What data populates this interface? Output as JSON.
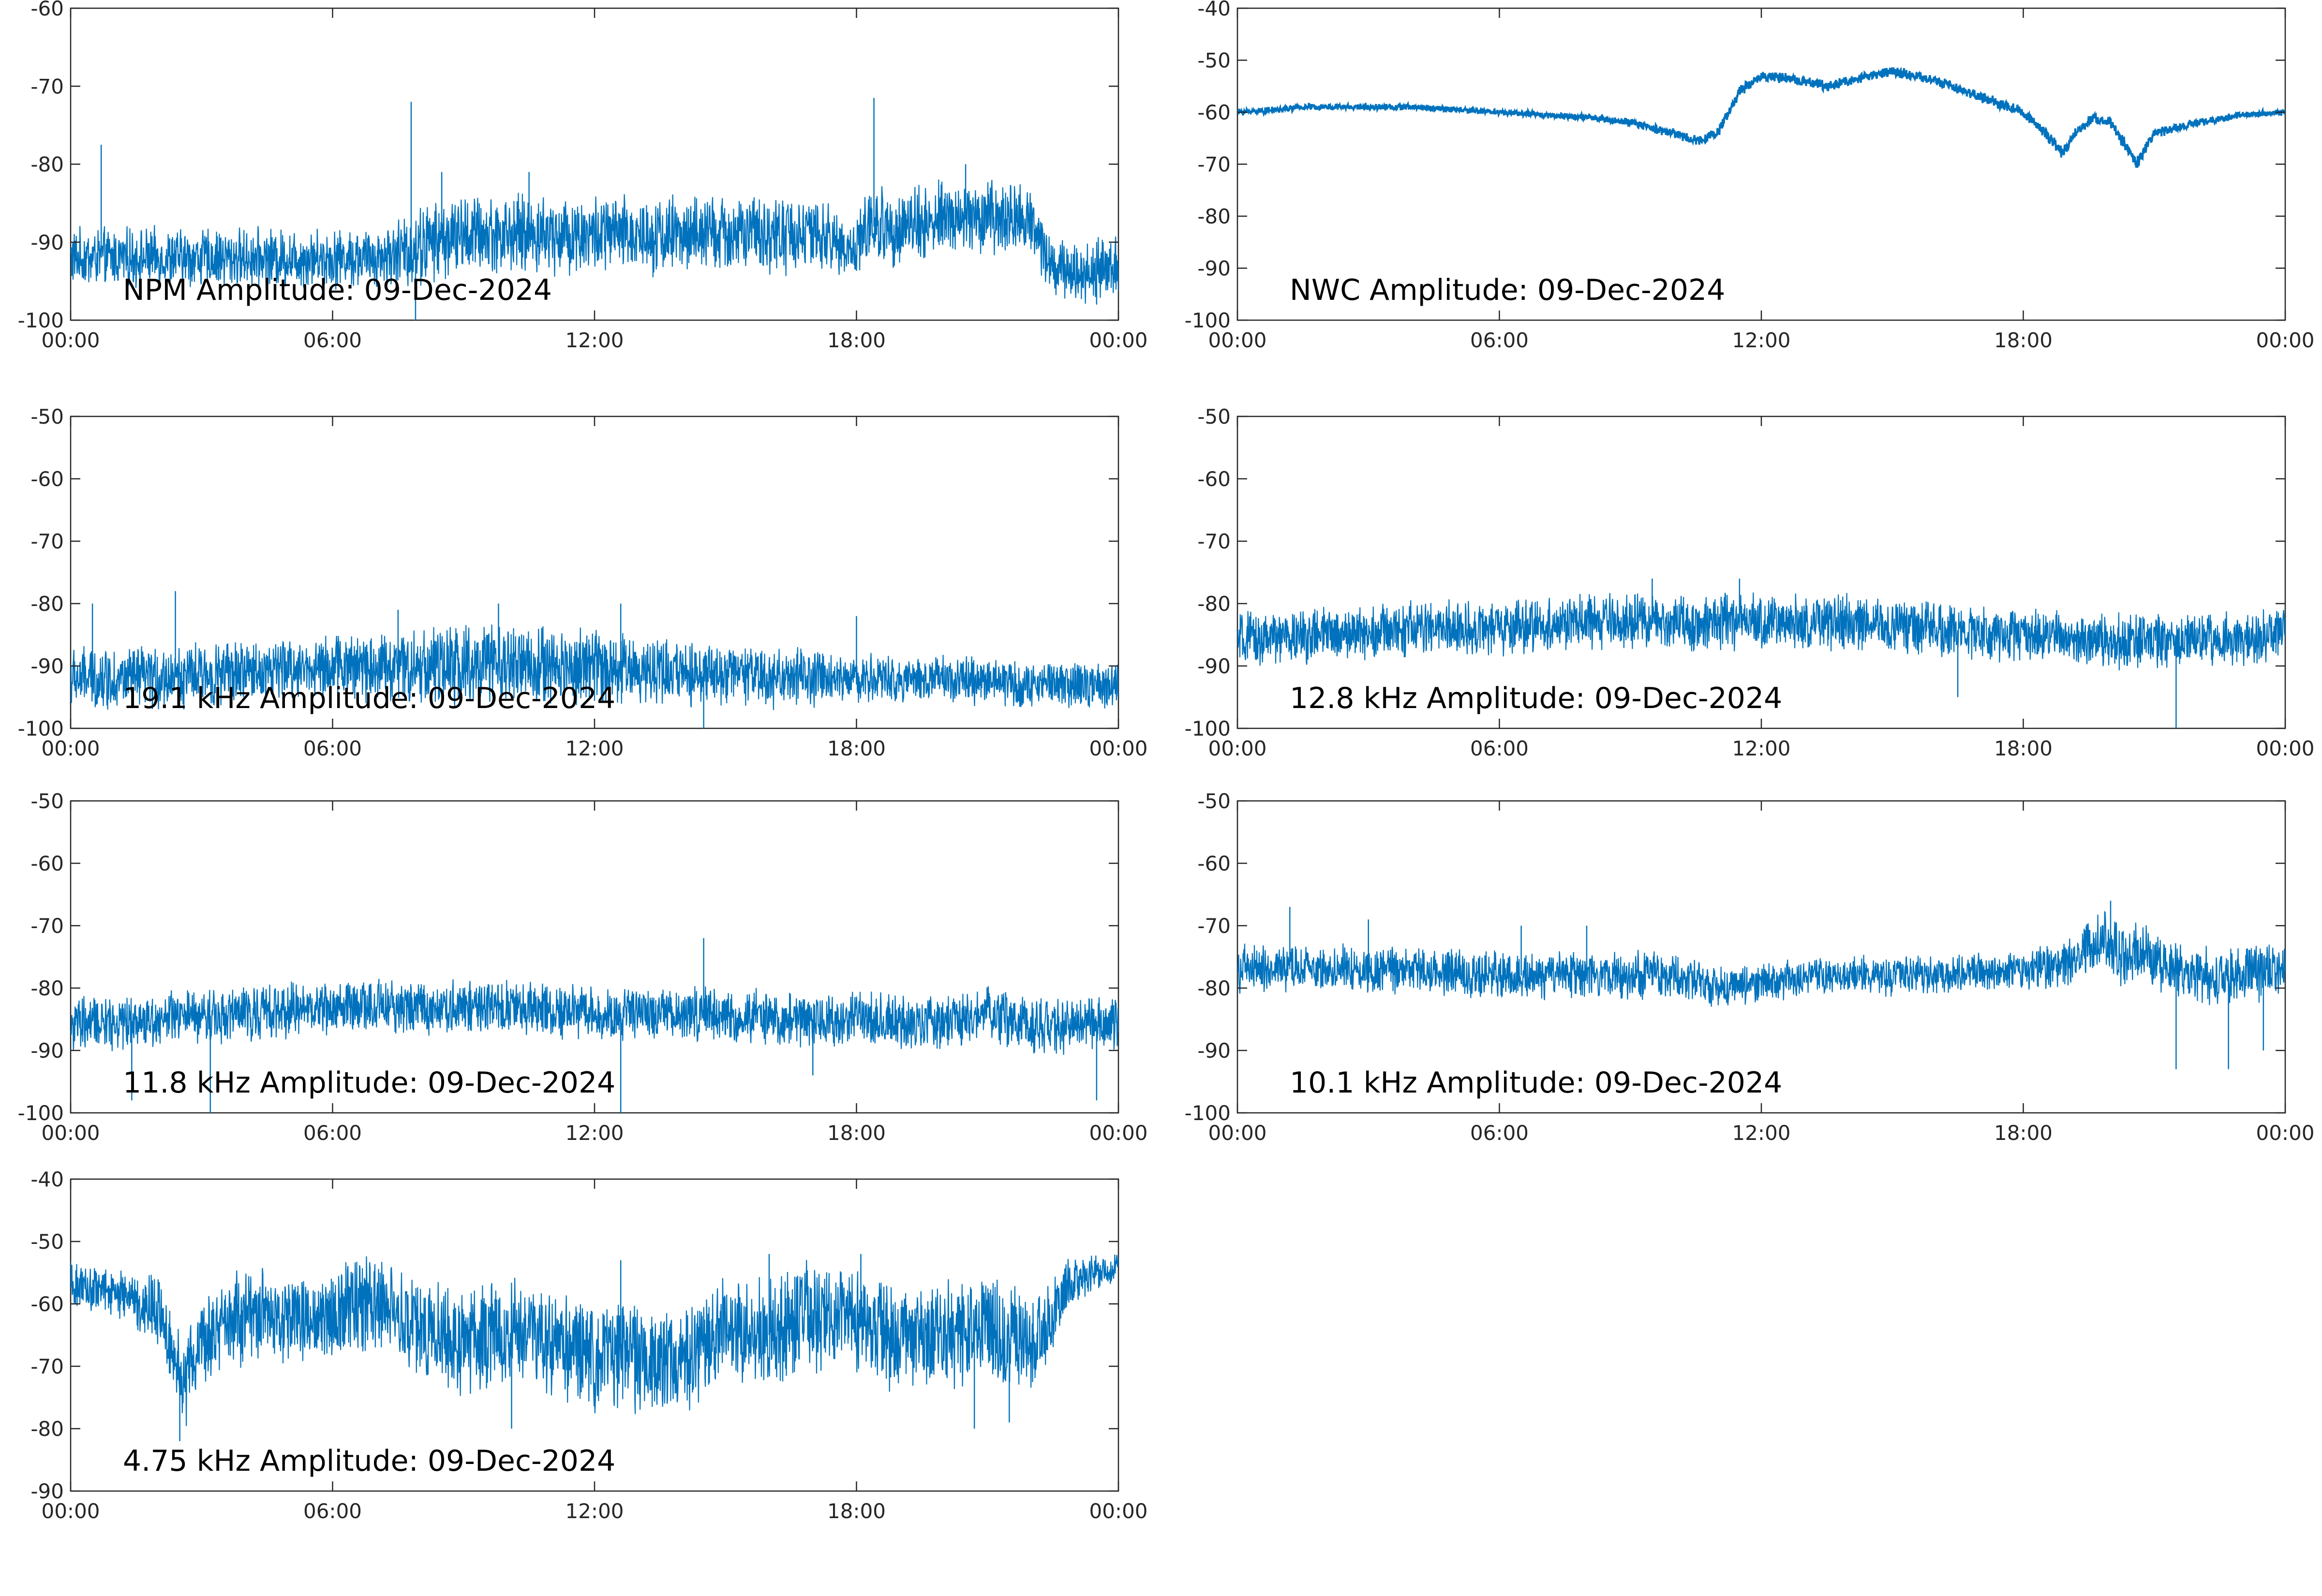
{
  "figure": {
    "background": "#ffffff",
    "line_color": "#0072bd",
    "axis_color": "#262626"
  },
  "chart_data": [
    {
      "type": "line",
      "title": "NPM Amplitude: 09-Dec-2024",
      "xlabel": "",
      "ylabel": "",
      "xlim_hours": [
        0,
        24
      ],
      "xticks": [
        "00:00",
        "06:00",
        "12:00",
        "18:00",
        "00:00"
      ],
      "ylim": [
        -100,
        -60
      ],
      "yticks": [
        "-100",
        "-90",
        "-80",
        "-70",
        "-60"
      ],
      "grid": false,
      "series": [
        {
          "x_hours": [
            0,
            1,
            2,
            3,
            4,
            5,
            6,
            7,
            7.8,
            8.2,
            9,
            10,
            11,
            12,
            13,
            14,
            15,
            16,
            17,
            18,
            18.2,
            19,
            20,
            21,
            22,
            22.5,
            23,
            24
          ],
          "mean": [
            -92,
            -92,
            -92,
            -92,
            -92,
            -92,
            -92,
            -92,
            -91,
            -90,
            -89,
            -89,
            -89,
            -89,
            -89,
            -89,
            -89,
            -89,
            -89,
            -91,
            -88,
            -88,
            -87,
            -87,
            -87,
            -93,
            -94,
            -93
          ],
          "spread": [
            3,
            3,
            3,
            3,
            3,
            3,
            3,
            3,
            4,
            4,
            4,
            4,
            4,
            4,
            4,
            4,
            4,
            4,
            4,
            3,
            4,
            4,
            4,
            4,
            4,
            3,
            3,
            3
          ],
          "spikes": [
            [
              0.7,
              -77.5
            ],
            [
              7.8,
              -72
            ],
            [
              7.9,
              -100
            ],
            [
              18.4,
              -71.5
            ],
            [
              8.5,
              -81
            ],
            [
              10.5,
              -81
            ],
            [
              20.5,
              -80
            ],
            [
              23.5,
              -98
            ]
          ]
        }
      ]
    },
    {
      "type": "line",
      "title": "NWC Amplitude: 09-Dec-2024",
      "xlabel": "",
      "ylabel": "",
      "xlim_hours": [
        0,
        24
      ],
      "xticks": [
        "00:00",
        "06:00",
        "12:00",
        "18:00",
        "00:00"
      ],
      "ylim": [
        -100,
        -40
      ],
      "yticks": [
        "-100",
        "-90",
        "-80",
        "-70",
        "-60",
        "-50",
        "-40"
      ],
      "grid": false,
      "series": [
        {
          "x_hours": [
            0,
            1,
            1.5,
            2,
            4,
            6,
            8,
            9,
            10,
            10.5,
            11,
            11.5,
            12,
            13,
            13.5,
            14,
            15,
            15.5,
            16,
            17,
            18,
            18.5,
            18.9,
            19.2,
            19.6,
            20,
            20.3,
            20.6,
            21,
            22,
            23,
            24
          ],
          "mean": [
            -60,
            -59.5,
            -59,
            -59,
            -59,
            -60,
            -61,
            -62,
            -64,
            -65.5,
            -64,
            -56,
            -53,
            -54,
            -55,
            -54,
            -52,
            -53,
            -54,
            -57,
            -60,
            -64,
            -68,
            -64,
            -61,
            -62,
            -66,
            -70,
            -64,
            -62,
            -60.5,
            -60
          ],
          "spread": [
            0.5,
            0.5,
            0.5,
            0.5,
            0.5,
            0.5,
            0.5,
            0.6,
            0.8,
            0.8,
            0.8,
            0.8,
            0.8,
            0.8,
            0.8,
            0.8,
            0.8,
            0.8,
            0.8,
            0.8,
            0.8,
            0.8,
            1,
            0.8,
            0.8,
            0.8,
            1,
            1,
            0.8,
            0.6,
            0.5,
            0.5
          ],
          "spikes": []
        }
      ]
    },
    {
      "type": "line",
      "title": "19.1 kHz Amplitude: 09-Dec-2024",
      "xlabel": "",
      "ylabel": "",
      "xlim_hours": [
        0,
        24
      ],
      "xticks": [
        "00:00",
        "06:00",
        "12:00",
        "18:00",
        "00:00"
      ],
      "ylim": [
        -100,
        -50
      ],
      "yticks": [
        "-100",
        "-90",
        "-80",
        "-70",
        "-60",
        "-50"
      ],
      "grid": false,
      "series": [
        {
          "x_hours": [
            0,
            2,
            4,
            6,
            8,
            10,
            12,
            14,
            16,
            18,
            20,
            22,
            24
          ],
          "mean": [
            -92,
            -92,
            -91,
            -90,
            -90,
            -90,
            -90,
            -91,
            -92,
            -92,
            -92,
            -93,
            -93
          ],
          "spread": [
            4,
            4,
            4,
            4,
            5,
            5,
            5,
            4,
            4,
            3,
            3,
            3,
            3
          ],
          "spikes": [
            [
              0.5,
              -80
            ],
            [
              2.4,
              -78
            ],
            [
              9.8,
              -80
            ],
            [
              12.6,
              -80
            ],
            [
              14.5,
              -100
            ],
            [
              18,
              -82
            ],
            [
              7.5,
              -81
            ]
          ]
        }
      ]
    },
    {
      "type": "line",
      "title": "12.8 kHz Amplitude: 09-Dec-2024",
      "xlabel": "",
      "ylabel": "",
      "xlim_hours": [
        0,
        24
      ],
      "xticks": [
        "00:00",
        "06:00",
        "12:00",
        "18:00",
        "00:00"
      ],
      "ylim": [
        -100,
        -50
      ],
      "yticks": [
        "-100",
        "-90",
        "-80",
        "-70",
        "-60",
        "-50"
      ],
      "grid": false,
      "series": [
        {
          "x_hours": [
            0,
            2,
            4,
            6,
            8,
            10,
            12,
            14,
            16,
            18,
            20,
            22,
            24
          ],
          "mean": [
            -86,
            -85,
            -84,
            -84,
            -83,
            -83,
            -83,
            -83,
            -84,
            -85,
            -86,
            -86,
            -85
          ],
          "spread": [
            3.5,
            3.5,
            3.5,
            3.5,
            3.5,
            3.5,
            3.5,
            3.5,
            3.5,
            3.5,
            3.5,
            3.5,
            3.5
          ],
          "spikes": [
            [
              11.5,
              -76
            ],
            [
              16.5,
              -95
            ],
            [
              21.5,
              -100
            ],
            [
              9.5,
              -76
            ]
          ]
        }
      ]
    },
    {
      "type": "line",
      "title": "11.8 kHz Amplitude: 09-Dec-2024",
      "xlabel": "",
      "ylabel": "",
      "xlim_hours": [
        0,
        24
      ],
      "xticks": [
        "00:00",
        "06:00",
        "12:00",
        "18:00",
        "00:00"
      ],
      "ylim": [
        -100,
        -50
      ],
      "yticks": [
        "-100",
        "-90",
        "-80",
        "-70",
        "-60",
        "-50"
      ],
      "grid": false,
      "series": [
        {
          "x_hours": [
            0,
            2,
            4,
            6,
            8,
            10,
            12,
            14,
            16,
            18,
            20,
            21,
            22,
            23,
            24
          ],
          "mean": [
            -86,
            -85,
            -84,
            -83,
            -83,
            -83,
            -84,
            -84,
            -85,
            -85,
            -86,
            -84,
            -86,
            -86,
            -85
          ],
          "spread": [
            3.5,
            3.5,
            3.5,
            3.5,
            3.5,
            3.5,
            3.5,
            3.5,
            3.5,
            3.5,
            3.5,
            3.5,
            3.5,
            3.5,
            3.5
          ],
          "spikes": [
            [
              14.5,
              -72
            ],
            [
              3.2,
              -100
            ],
            [
              12.6,
              -100
            ],
            [
              23.5,
              -98
            ],
            [
              1.4,
              -98
            ],
            [
              17,
              -94
            ]
          ]
        }
      ]
    },
    {
      "type": "line",
      "title": "10.1 kHz Amplitude: 09-Dec-2024",
      "xlabel": "",
      "ylabel": "",
      "xlim_hours": [
        0,
        24
      ],
      "xticks": [
        "00:00",
        "06:00",
        "12:00",
        "18:00",
        "00:00"
      ],
      "ylim": [
        -100,
        -50
      ],
      "yticks": [
        "-100",
        "-90",
        "-80",
        "-70",
        "-60",
        "-50"
      ],
      "grid": false,
      "series": [
        {
          "x_hours": [
            0,
            2,
            4,
            6,
            8,
            10,
            11,
            12,
            14,
            16,
            18,
            19,
            19.8,
            20.3,
            20.7,
            21,
            22,
            23,
            24
          ],
          "mean": [
            -77,
            -77,
            -77,
            -78,
            -78,
            -78,
            -80,
            -79,
            -78,
            -78,
            -77,
            -76,
            -72,
            -75,
            -74,
            -76,
            -78,
            -78,
            -77
          ],
          "spread": [
            3,
            3,
            3,
            3,
            3,
            3,
            2.5,
            2.5,
            2.5,
            2.5,
            2.5,
            3,
            4,
            4,
            4,
            3.5,
            3.5,
            3.5,
            3.5
          ],
          "spikes": [
            [
              20,
              -66
            ],
            [
              1.2,
              -67
            ],
            [
              21.5,
              -93
            ],
            [
              22.7,
              -93
            ],
            [
              23.5,
              -90
            ],
            [
              3,
              -69
            ],
            [
              6.5,
              -70
            ],
            [
              8,
              -70
            ]
          ]
        }
      ]
    },
    {
      "type": "line",
      "title": "4.75 kHz Amplitude: 09-Dec-2024",
      "xlabel": "",
      "ylabel": "",
      "xlim_hours": [
        0,
        24
      ],
      "xticks": [
        "00:00",
        "06:00",
        "12:00",
        "18:00",
        "00:00"
      ],
      "ylim": [
        -90,
        -40
      ],
      "yticks": [
        "-90",
        "-80",
        "-70",
        "-60",
        "-50",
        "-40"
      ],
      "grid": false,
      "series": [
        {
          "x_hours": [
            0,
            1,
            2,
            2.6,
            3,
            4,
            5,
            6,
            7,
            8,
            9,
            10,
            11,
            12,
            13,
            14,
            15,
            16,
            17,
            18,
            19,
            20,
            21,
            22,
            23,
            24
          ],
          "mean": [
            -57,
            -58,
            -61,
            -72,
            -66,
            -62,
            -63,
            -61,
            -60,
            -64,
            -66,
            -64,
            -66,
            -68,
            -69,
            -70,
            -63,
            -65,
            -62,
            -63,
            -66,
            -65,
            -64,
            -67,
            -56,
            -54
          ],
          "spread": [
            3,
            3,
            4,
            6,
            6,
            6,
            6,
            6,
            6,
            6,
            7,
            7,
            7,
            7,
            7,
            7,
            6,
            7,
            7,
            7,
            7,
            7,
            7,
            7,
            3,
            2
          ],
          "spikes": [
            [
              2.5,
              -82
            ],
            [
              10.1,
              -80
            ],
            [
              20.7,
              -80
            ],
            [
              12.6,
              -53
            ],
            [
              18.1,
              -52
            ],
            [
              16,
              -52
            ],
            [
              21.5,
              -79
            ]
          ]
        }
      ]
    }
  ]
}
